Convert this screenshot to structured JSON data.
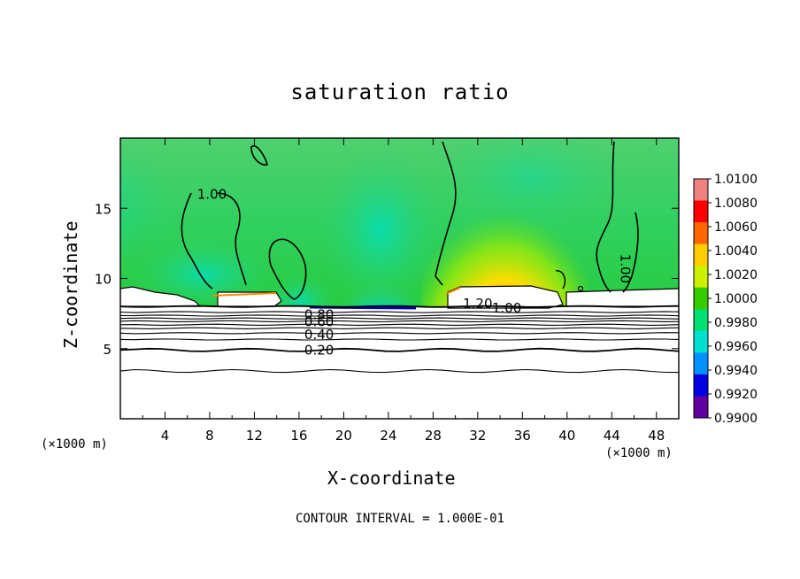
{
  "chart_data": {
    "type": "heatmap",
    "title": "saturation ratio",
    "xlabel": "X-coordinate",
    "ylabel": "Z-coordinate",
    "x_unit": "(×1000 m)",
    "y_unit": "(×1000 m)",
    "xlim": [
      0,
      50
    ],
    "ylim": [
      0,
      20
    ],
    "x_ticks": [
      4,
      8,
      12,
      16,
      20,
      24,
      28,
      32,
      36,
      40,
      44,
      48
    ],
    "y_ticks": [
      5,
      10,
      15
    ],
    "footer": "CONTOUR INTERVAL = 1.000E-01",
    "colorbar": {
      "min": 0.99,
      "max": 1.01,
      "labels": [
        "1.0100",
        "1.0080",
        "1.0060",
        "1.0040",
        "1.0020",
        "1.0000",
        "0.9980",
        "0.9960",
        "0.9940",
        "0.9920",
        "0.9900"
      ],
      "colors": [
        "#f08080",
        "#ff0000",
        "#ff6600",
        "#ffcc00",
        "#ccf000",
        "#33cc00",
        "#00e070",
        "#00e0d0",
        "#0090ff",
        "#0000e0",
        "#6000a0"
      ]
    },
    "contour_labels": [
      {
        "text": "1.00",
        "x": 8.2,
        "z": 16.0
      },
      {
        "text": "1.00",
        "x": 45.2,
        "z": 10.7
      },
      {
        "text": "1.20",
        "x": 32.0,
        "z": 8.2
      },
      {
        "text": "1.00",
        "x": 34.6,
        "z": 7.9
      },
      {
        "text": "0.80",
        "x": 17.8,
        "z": 7.4
      },
      {
        "text": "0.60",
        "x": 17.8,
        "z": 6.9
      },
      {
        "text": "0.40",
        "x": 17.8,
        "z": 6.0
      },
      {
        "text": "0.20",
        "x": 17.8,
        "z": 4.9
      }
    ],
    "contour_levels_below": [
      8.0,
      7.6,
      7.35,
      7.15,
      6.95,
      6.7,
      6.45,
      6.1,
      5.65,
      4.9,
      3.4
    ]
  }
}
